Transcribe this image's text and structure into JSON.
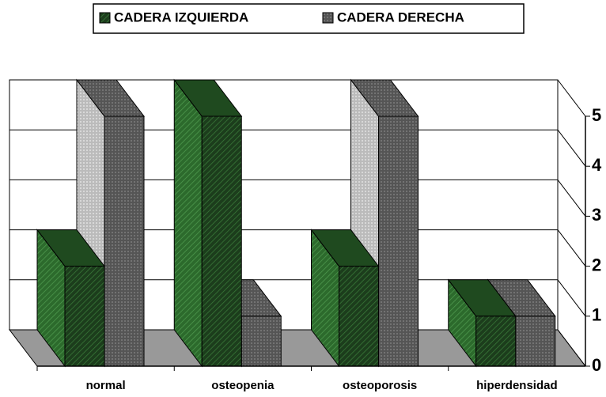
{
  "chart_data": {
    "type": "bar3d",
    "categories": [
      "normal",
      "osteopenia",
      "osteoporosis",
      "hiperdensidad"
    ],
    "series": [
      {
        "name": "CADERA IZQUIERDA",
        "color": "#1c3d1c",
        "values": [
          2,
          5,
          2,
          1
        ]
      },
      {
        "name": "CADERA DERECHA",
        "color": "#555555",
        "values": [
          5,
          1,
          5,
          1
        ]
      }
    ],
    "ylim": [
      0,
      5
    ],
    "yticks": [
      0,
      1,
      2,
      3,
      4,
      5
    ],
    "grid": true,
    "legend": "top"
  }
}
